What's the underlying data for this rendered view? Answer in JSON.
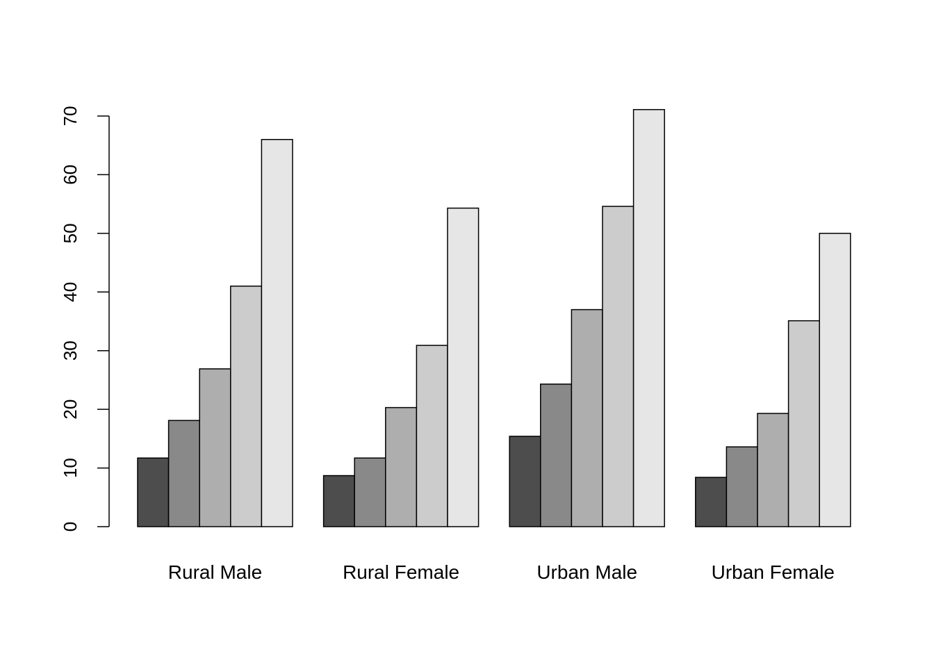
{
  "chart_data": {
    "type": "bar",
    "grouped": true,
    "categories": [
      "Rural Male",
      "Rural Female",
      "Urban Male",
      "Urban Female"
    ],
    "series": [
      {
        "color": "#4d4d4d",
        "values": [
          11.7,
          8.7,
          15.4,
          8.4
        ]
      },
      {
        "color": "#898989",
        "values": [
          18.1,
          11.7,
          24.3,
          13.6
        ]
      },
      {
        "color": "#aeaeae",
        "values": [
          26.9,
          20.3,
          37.0,
          19.3
        ]
      },
      {
        "color": "#cccccc",
        "values": [
          41.0,
          30.9,
          54.6,
          35.1
        ]
      },
      {
        "color": "#e6e6e6",
        "values": [
          66.0,
          54.3,
          71.1,
          50.0
        ]
      }
    ],
    "yticks": [
      0,
      10,
      20,
      30,
      40,
      50,
      60,
      70
    ],
    "ylim": [
      0,
      70
    ],
    "grid": false,
    "legend": "none"
  }
}
